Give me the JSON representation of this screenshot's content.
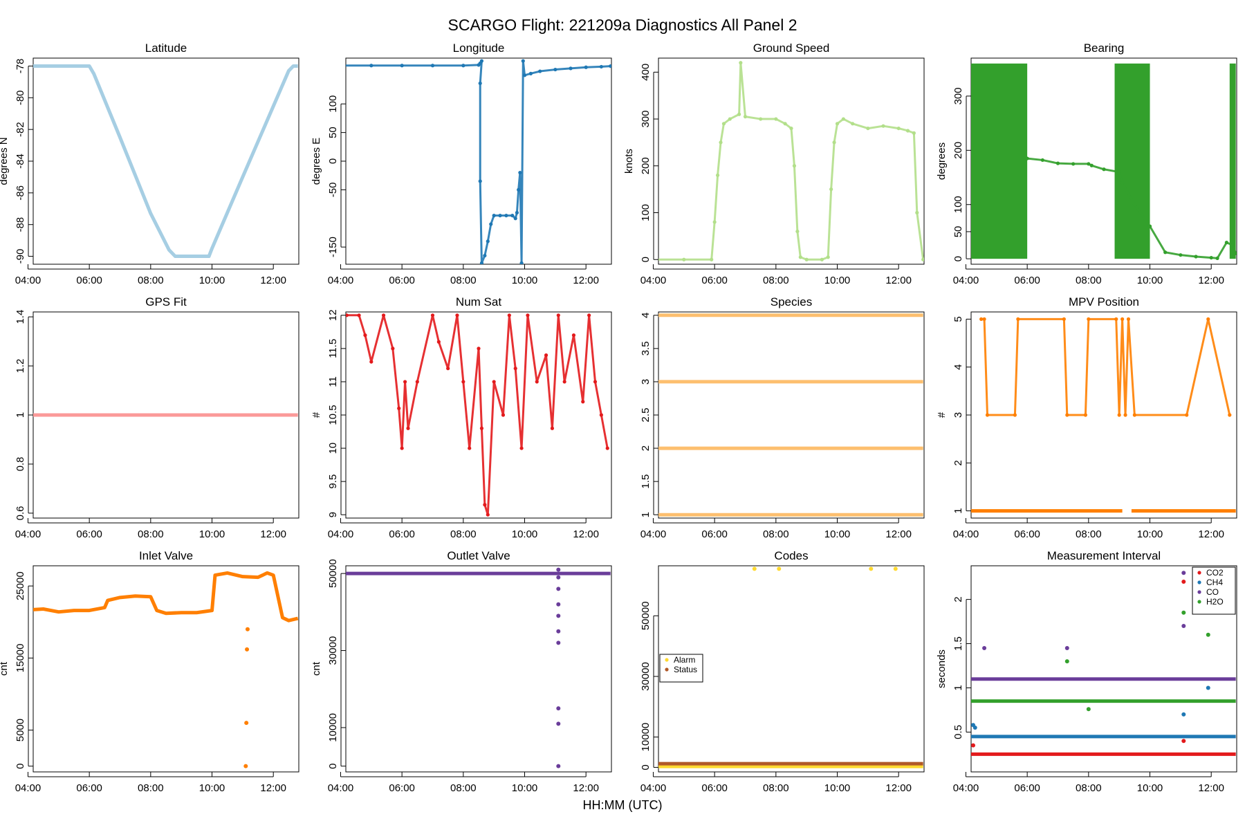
{
  "figure": {
    "title": "SCARGO Flight: 221209a  Diagnostics All  Panel 2",
    "xlabel": "HH:MM (UTC)"
  },
  "colors": {
    "light_blue": "#a6cee3",
    "blue": "#1f78b4",
    "light_green": "#b2df8a",
    "green": "#33a02c",
    "pink": "#fb9a99",
    "red": "#e31a1c",
    "light_orange": "#fdbf6f",
    "orange": "#ff7f00",
    "purple": "#6a3d9a",
    "yellow": "#ffd92f",
    "brown": "#b15928"
  },
  "chart_data": [
    {
      "id": "latitude",
      "type": "line",
      "title": "Latitude",
      "xlabel": "",
      "ylabel": "degrees N",
      "xlim": [
        4.17,
        12.83
      ],
      "ylim": [
        -90.5,
        -77.5
      ],
      "xticks": [
        "04:00",
        "06:00",
        "08:00",
        "10:00",
        "12:00"
      ],
      "yticks": [
        -90,
        -88,
        -86,
        -84,
        -82,
        -80,
        -78
      ],
      "series": [
        {
          "color": "light_blue",
          "x": [
            4.1,
            4.5,
            5.0,
            5.5,
            6.0,
            6.15,
            7.0,
            8.0,
            8.6,
            8.8,
            9.0,
            9.5,
            9.9,
            10.0,
            11.0,
            12.5,
            12.65,
            12.8
          ],
          "y": [
            -78,
            -78,
            -78,
            -78,
            -78,
            -78.5,
            -82.5,
            -87.3,
            -89.6,
            -90,
            -90,
            -90,
            -90,
            -89.5,
            -85,
            -78.3,
            -78,
            -78
          ]
        }
      ]
    },
    {
      "id": "longitude",
      "type": "scatter",
      "title": "Longitude",
      "xlabel": "",
      "ylabel": "degrees E",
      "xlim": [
        4.17,
        12.83
      ],
      "ylim": [
        -180,
        180
      ],
      "xticks": [
        "04:00",
        "06:00",
        "08:00",
        "10:00",
        "12:00"
      ],
      "yticks": [
        -150,
        -50,
        0,
        50,
        100
      ],
      "series": [
        {
          "color": "blue",
          "x": [
            4.1,
            5.0,
            6.0,
            7.0,
            8.0,
            8.5,
            8.55,
            8.6,
            8.55,
            8.55,
            8.6,
            8.7,
            8.8,
            8.9,
            9.0,
            9.2,
            9.4,
            9.6,
            9.7,
            9.75,
            9.8,
            9.85,
            9.9,
            9.95,
            10.0,
            10.2,
            10.5,
            11.0,
            11.5,
            12.0,
            12.5,
            12.8
          ],
          "y": [
            167,
            167,
            167,
            167,
            167,
            168,
            171,
            175,
            136,
            -35,
            -178,
            -165,
            -140,
            -110,
            -95,
            -95,
            -95,
            -95,
            -100,
            -90,
            -50,
            -20,
            -178,
            175,
            150,
            153,
            157,
            160,
            162,
            164,
            165,
            166
          ]
        }
      ]
    },
    {
      "id": "ground-speed",
      "type": "scatter",
      "title": "Ground Speed",
      "xlabel": "",
      "ylabel": "knots",
      "xlim": [
        4.17,
        12.83
      ],
      "ylim": [
        -10,
        430
      ],
      "xticks": [
        "04:00",
        "06:00",
        "08:00",
        "10:00",
        "12:00"
      ],
      "yticks": [
        0,
        100,
        200,
        300,
        400
      ],
      "series": [
        {
          "color": "light_green",
          "x": [
            4.1,
            5.0,
            5.9,
            6.0,
            6.1,
            6.2,
            6.3,
            6.5,
            6.8,
            6.85,
            7.0,
            7.5,
            8.0,
            8.3,
            8.5,
            8.6,
            8.7,
            8.8,
            9.0,
            9.5,
            9.7,
            9.8,
            9.9,
            10.0,
            10.2,
            10.5,
            11.0,
            11.5,
            12.0,
            12.3,
            12.5,
            12.6,
            12.8
          ],
          "y": [
            0,
            0,
            0,
            80,
            180,
            250,
            290,
            300,
            310,
            420,
            305,
            300,
            300,
            290,
            280,
            200,
            60,
            5,
            0,
            0,
            5,
            150,
            250,
            290,
            300,
            290,
            280,
            285,
            280,
            275,
            270,
            100,
            0
          ]
        }
      ]
    },
    {
      "id": "bearing",
      "type": "scatter",
      "title": "Bearing",
      "xlabel": "",
      "ylabel": "degrees",
      "xlim": [
        4.17,
        12.83
      ],
      "ylim": [
        -10,
        370
      ],
      "xticks": [
        "04:00",
        "06:00",
        "08:00",
        "10:00",
        "12:00"
      ],
      "yticks": [
        0,
        50,
        100,
        200,
        300
      ],
      "series": [
        {
          "color": "green",
          "x": [
            6.0,
            6.5,
            7.0,
            7.5,
            8.0,
            8.1,
            8.5,
            9.0,
            9.1,
            9.5,
            10.0,
            10.5,
            11.0,
            11.5,
            12.0,
            12.2,
            12.5,
            12.7,
            12.8
          ],
          "y": [
            185,
            182,
            176,
            175,
            175,
            172,
            165,
            160,
            140,
            100,
            60,
            12,
            7,
            4,
            2,
            1,
            30,
            25,
            10
          ]
        }
      ],
      "bands": [
        {
          "x0": 4.1,
          "x1": 6.0,
          "y0": 0,
          "y1": 360,
          "color": "green"
        },
        {
          "x0": 8.85,
          "x1": 10.0,
          "y0": 0,
          "y1": 360,
          "color": "green"
        },
        {
          "x0": 12.6,
          "x1": 12.8,
          "y0": 0,
          "y1": 360,
          "color": "green"
        }
      ]
    },
    {
      "id": "gps-fit",
      "type": "line",
      "title": "GPS Fit",
      "xlabel": "",
      "ylabel": "",
      "xlim": [
        4.17,
        12.83
      ],
      "ylim": [
        0.58,
        1.42
      ],
      "xticks": [
        "04:00",
        "06:00",
        "08:00",
        "10:00",
        "12:00"
      ],
      "yticks": [
        0.6,
        0.8,
        1.0,
        1.2,
        1.4
      ],
      "series": [
        {
          "color": "pink",
          "x": [
            4.1,
            12.8
          ],
          "y": [
            1.0,
            1.0
          ]
        }
      ]
    },
    {
      "id": "num-sat",
      "type": "scatter",
      "title": "Num Sat",
      "xlabel": "",
      "ylabel": "#",
      "xlim": [
        4.17,
        12.83
      ],
      "ylim": [
        8.95,
        12.05
      ],
      "xticks": [
        "04:00",
        "06:00",
        "08:00",
        "10:00",
        "12:00"
      ],
      "yticks": [
        9.0,
        9.5,
        10.0,
        10.5,
        11.0,
        11.5,
        12.0
      ],
      "series": [
        {
          "color": "red",
          "x": [
            4.2,
            4.6,
            4.8,
            5.0,
            5.4,
            5.7,
            5.9,
            6.0,
            6.1,
            6.2,
            6.5,
            7.0,
            7.2,
            7.5,
            7.8,
            8.0,
            8.2,
            8.5,
            8.6,
            8.7,
            8.8,
            9.0,
            9.3,
            9.5,
            9.7,
            9.9,
            10.1,
            10.4,
            10.7,
            10.9,
            11.1,
            11.3,
            11.6,
            11.9,
            12.1,
            12.3,
            12.5,
            12.7
          ],
          "y": [
            12,
            12,
            11.7,
            11.3,
            12,
            11.5,
            10.6,
            10,
            11,
            10.3,
            11,
            12,
            11.6,
            11.2,
            12,
            11,
            10,
            11.5,
            10.3,
            9.15,
            9.0,
            11,
            10.5,
            12,
            11.2,
            10,
            12,
            11,
            11.4,
            10.3,
            12,
            11,
            11.7,
            10.7,
            12,
            11,
            10.5,
            10
          ]
        }
      ]
    },
    {
      "id": "species",
      "type": "line",
      "title": "Species",
      "xlabel": "",
      "ylabel": "",
      "xlim": [
        4.17,
        12.83
      ],
      "ylim": [
        0.95,
        4.05
      ],
      "xticks": [
        "04:00",
        "06:00",
        "08:00",
        "10:00",
        "12:00"
      ],
      "yticks": [
        1.0,
        1.5,
        2.0,
        2.5,
        3.0,
        3.5,
        4.0
      ],
      "series": [
        {
          "color": "light_orange",
          "x": [
            4.1,
            12.8
          ],
          "y": [
            1,
            1
          ]
        },
        {
          "color": "light_orange",
          "x": [
            4.1,
            12.8
          ],
          "y": [
            2,
            2
          ]
        },
        {
          "color": "light_orange",
          "x": [
            4.1,
            12.8
          ],
          "y": [
            3,
            3
          ]
        },
        {
          "color": "light_orange",
          "x": [
            4.1,
            12.8
          ],
          "y": [
            4,
            4
          ]
        }
      ]
    },
    {
      "id": "mpv-position",
      "type": "scatter",
      "title": "MPV Position",
      "xlabel": "",
      "ylabel": "#",
      "xlim": [
        4.17,
        12.83
      ],
      "ylim": [
        0.85,
        5.15
      ],
      "xticks": [
        "04:00",
        "06:00",
        "08:00",
        "10:00",
        "12:00"
      ],
      "yticks": [
        1,
        2,
        3,
        4,
        5
      ],
      "series": [
        {
          "color": "orange",
          "x": [
            4.5,
            4.6,
            4.7,
            5.6,
            5.7,
            7.2,
            7.3,
            7.9,
            8.0,
            8.9,
            9.0,
            9.1,
            9.2,
            9.3,
            9.5,
            11.2,
            11.9,
            12.6
          ],
          "y": [
            5,
            5,
            3,
            3,
            5,
            5,
            3,
            3,
            5,
            5,
            3,
            5,
            3,
            5,
            3,
            3,
            5,
            3
          ]
        }
      ],
      "segments": [
        {
          "x0": 4.1,
          "x1": 9.1,
          "y": 1
        },
        {
          "x0": 9.4,
          "x1": 12.8,
          "y": 1
        }
      ]
    },
    {
      "id": "inlet-valve",
      "type": "line",
      "title": "Inlet Valve",
      "xlabel": "",
      "ylabel": "cnt",
      "xlim": [
        4.17,
        12.83
      ],
      "ylim": [
        -800,
        27800
      ],
      "xticks": [
        "04:00",
        "06:00",
        "08:00",
        "10:00",
        "12:00"
      ],
      "yticks": [
        0,
        5000,
        15000,
        25000
      ],
      "series": [
        {
          "color": "orange",
          "x": [
            4.1,
            4.5,
            5.0,
            5.5,
            6.0,
            6.5,
            6.6,
            7.0,
            7.5,
            8.0,
            8.2,
            8.5,
            9.0,
            9.5,
            10.0,
            10.1,
            10.5,
            11.0,
            11.5,
            11.8,
            12.0,
            12.3,
            12.5,
            12.8
          ],
          "y": [
            21700,
            21800,
            21400,
            21600,
            21600,
            22000,
            23000,
            23400,
            23600,
            23500,
            21600,
            21200,
            21300,
            21300,
            21600,
            26500,
            26800,
            26300,
            26200,
            26800,
            26500,
            20600,
            20200,
            20500
          ]
        }
      ],
      "outliers": {
        "x": [
          11.1,
          11.12,
          11.14,
          11.16
        ],
        "y": [
          0,
          6000,
          16200,
          19000
        ]
      }
    },
    {
      "id": "outlet-valve",
      "type": "scatter",
      "title": "Outlet Valve",
      "xlabel": "",
      "ylabel": "cnt",
      "xlim": [
        4.17,
        12.83
      ],
      "ylim": [
        -1500,
        52000
      ],
      "xticks": [
        "04:00",
        "06:00",
        "08:00",
        "10:00",
        "12:00"
      ],
      "yticks": [
        0,
        10000,
        30000,
        50000
      ],
      "series": [
        {
          "color": "purple",
          "x": [
            4.1,
            12.8
          ],
          "y": [
            50000,
            50000
          ]
        }
      ],
      "outliers": {
        "x": [
          11.1,
          11.1,
          11.1,
          11.1,
          11.1,
          11.1,
          11.1,
          11.1,
          11.1,
          11.1
        ],
        "y": [
          51000,
          49000,
          46000,
          42000,
          39000,
          35000,
          32000,
          15000,
          11000,
          0
        ]
      }
    },
    {
      "id": "codes",
      "type": "scatter",
      "title": "Codes",
      "xlabel": "",
      "ylabel": "",
      "xlim": [
        4.17,
        12.83
      ],
      "ylim": [
        -1500,
        66500
      ],
      "xticks": [
        "04:00",
        "06:00",
        "08:00",
        "10:00",
        "12:00"
      ],
      "yticks": [
        0,
        10000,
        30000,
        50000
      ],
      "legend": {
        "position": "left",
        "entries": [
          {
            "label": "Alarm",
            "color": "yellow"
          },
          {
            "label": "Status",
            "color": "brown"
          }
        ]
      },
      "series": [
        {
          "name": "Alarm",
          "color": "yellow",
          "x": [
            4.1,
            12.8
          ],
          "y": [
            300,
            300
          ],
          "points": {
            "x": [
              7.3,
              8.1,
              11.1,
              11.9
            ],
            "y": [
              65500,
              65500,
              65500,
              65500
            ]
          }
        },
        {
          "name": "Status",
          "color": "brown",
          "x": [
            4.1,
            12.8
          ],
          "y": [
            1200,
            1200
          ]
        }
      ]
    },
    {
      "id": "measurement-interval",
      "type": "scatter",
      "title": "Measurement Interval",
      "xlabel": "",
      "ylabel": "seconds",
      "xlim": [
        4.17,
        12.83
      ],
      "ylim": [
        0.05,
        2.38
      ],
      "xticks": [
        "04:00",
        "06:00",
        "08:00",
        "10:00",
        "12:00"
      ],
      "yticks": [
        0.5,
        1.0,
        1.5,
        2.0
      ],
      "legend": {
        "position": "top-right",
        "entries": [
          {
            "label": "CO2",
            "color": "red"
          },
          {
            "label": "CH4",
            "color": "blue"
          },
          {
            "label": "CO",
            "color": "purple"
          },
          {
            "label": "H2O",
            "color": "green"
          }
        ]
      },
      "series": [
        {
          "name": "CO2",
          "color": "red",
          "x": [
            4.1,
            12.8
          ],
          "y": [
            0.25,
            0.25
          ],
          "spikes": {
            "x": [
              4.2,
              11.1,
              11.1
            ],
            "y": [
              0.35,
              0.4,
              2.2
            ]
          }
        },
        {
          "name": "CH4",
          "color": "blue",
          "x": [
            4.1,
            12.8
          ],
          "y": [
            0.45,
            0.45
          ],
          "spikes": {
            "x": [
              4.2,
              4.3,
              11.1,
              11.9
            ],
            "y": [
              0.58,
              0.55,
              0.7,
              1.0
            ]
          }
        },
        {
          "name": "CO",
          "color": "purple",
          "x": [
            4.1,
            12.8
          ],
          "y": [
            1.1,
            1.1
          ],
          "spikes": {
            "x": [
              4.6,
              7.3,
              11.1,
              11.1
            ],
            "y": [
              1.45,
              1.45,
              2.3,
              1.7
            ]
          }
        },
        {
          "name": "H2O",
          "color": "green",
          "x": [
            4.1,
            12.8
          ],
          "y": [
            0.85,
            0.85
          ],
          "spikes": {
            "x": [
              7.3,
              8.0,
              11.1,
              11.9
            ],
            "y": [
              1.3,
              0.76,
              1.85,
              1.6
            ]
          }
        }
      ]
    }
  ]
}
